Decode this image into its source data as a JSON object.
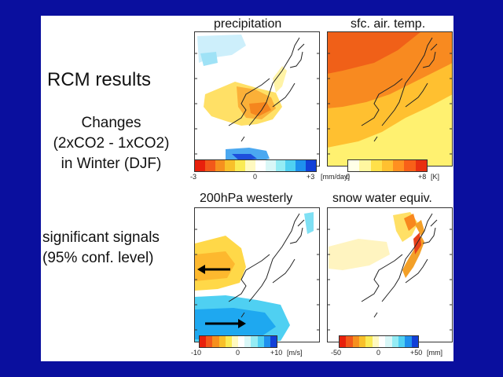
{
  "left": {
    "title": "RCM results",
    "subtitle_lines": [
      "Changes",
      "(2xCO2 - 1xCO2)",
      "in Winter (DJF)"
    ],
    "signal_lines": [
      "significant signals",
      "(95% conf. level)"
    ]
  },
  "panels": [
    {
      "title": "precipitation",
      "cb_labels": [
        "-3",
        "0",
        "+3",
        "[mm/day]"
      ]
    },
    {
      "title": "sfc. air. temp.",
      "cb_labels": [
        "0",
        "+8",
        "[K]"
      ]
    },
    {
      "title": "200hPa westerly",
      "cb_labels": [
        "-10",
        "0",
        "+10",
        "[m/s]"
      ]
    },
    {
      "title": "snow water equiv.",
      "cb_labels": [
        "-50",
        "0",
        "+50",
        "[mm]"
      ]
    }
  ],
  "colors": {
    "background": "#0a0f9e",
    "diverging": [
      "#e8200c",
      "#f2581a",
      "#f6901e",
      "#f8c02a",
      "#faeb55",
      "#fff9c0",
      "#ffffff",
      "#d9f7f7",
      "#94ecf4",
      "#4fd0f2",
      "#1e90ee",
      "#1240d8"
    ],
    "warm": [
      "#ffffe8",
      "#fff7a0",
      "#ffe04a",
      "#ffc030",
      "#ff9020",
      "#f86018",
      "#e83010"
    ]
  }
}
